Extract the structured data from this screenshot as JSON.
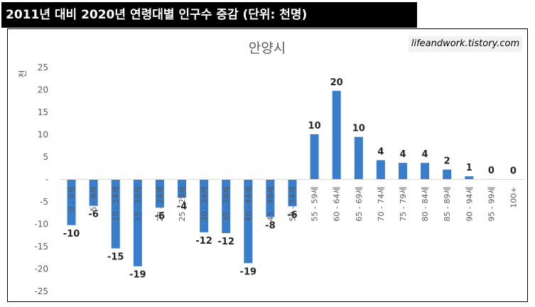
{
  "header": {
    "title": "2011년 대비 2020년 연령대별 인구수 증감 (단위: 천명)"
  },
  "watermark": {
    "text": "lifeandwork.tistory.com"
  },
  "chart_data": {
    "type": "bar",
    "title": "안양시",
    "xlabel": "",
    "ylabel": "천",
    "ylim": [
      -25,
      25
    ],
    "yticks": [
      25,
      20,
      15,
      10,
      5,
      0,
      -5,
      -10,
      -15,
      -20,
      -25
    ],
    "ytick_labels": [
      "25",
      "20",
      "15",
      "10",
      "5",
      "-",
      "-5",
      "-10",
      "-15",
      "-20",
      "-25"
    ],
    "categories": [
      "0 - 4세",
      "5 - 9세",
      "10 - 14세",
      "15 - 19세",
      "20 - 24세",
      "25 - 29세",
      "30 - 34세",
      "35 - 39세",
      "40 - 44세",
      "45 - 49세",
      "50 - 54세",
      "55 - 59세",
      "60 - 64세",
      "65 - 69세",
      "70 - 74세",
      "75 - 79세",
      "80 - 84세",
      "85 - 89세",
      "90 - 94세",
      "95 - 99세",
      "100+"
    ],
    "values": [
      -10.2,
      -5.9,
      -15.4,
      -19.4,
      -6.3,
      -4.1,
      -11.8,
      -12.0,
      -18.7,
      -8.4,
      -6.0,
      10.1,
      19.8,
      9.5,
      4.3,
      3.7,
      3.7,
      2.2,
      0.7,
      0.1,
      0.0
    ],
    "data_labels": [
      "-10",
      "-6",
      "-15",
      "-19",
      "-6",
      "-4",
      "-12",
      "-12",
      "-19",
      "-8",
      "-6",
      "10",
      "20",
      "10",
      "4",
      "4",
      "4",
      "2",
      "1",
      "0",
      "0"
    ],
    "bar_color": "#3a7dc9",
    "grid": false,
    "legend": "none"
  }
}
